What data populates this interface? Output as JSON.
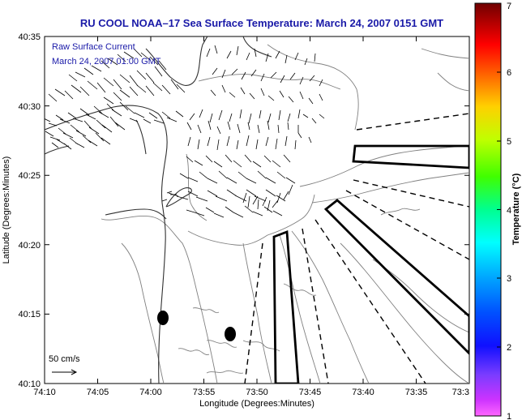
{
  "title": "RU COOL  NOAA–17  Sea Surface Temperature:  March 24, 2007 0151 GMT",
  "legend_text": {
    "line1": "Raw Surface Current",
    "line2": "March 24, 2007 01:00 GMT"
  },
  "scale_label": "50 cm/s",
  "x_axis": {
    "label": "Longitude (Degrees:Minutes)",
    "ticks": [
      "74:10",
      "74:05",
      "74:00",
      "73:55",
      "73:50",
      "73:45",
      "73:40",
      "73:35",
      "73:3"
    ]
  },
  "y_axis": {
    "label": "Latitude (Degrees:Minutes)",
    "ticks": [
      "40:35",
      "40:30",
      "40:25",
      "40:20",
      "40:15",
      "40:10"
    ]
  },
  "colorbar": {
    "label": "Temperature (°C)",
    "min": 1,
    "max": 7,
    "ticks": [
      "1",
      "2",
      "3",
      "4",
      "5",
      "6",
      "7"
    ],
    "colors": [
      "#ff00ff",
      "#8000ff",
      "#0000ff",
      "#0080ff",
      "#00ffff",
      "#00ff80",
      "#00ff00",
      "#80ff00",
      "#ffff00",
      "#ff8000",
      "#ff0000",
      "#b00000",
      "#700000"
    ]
  }
}
